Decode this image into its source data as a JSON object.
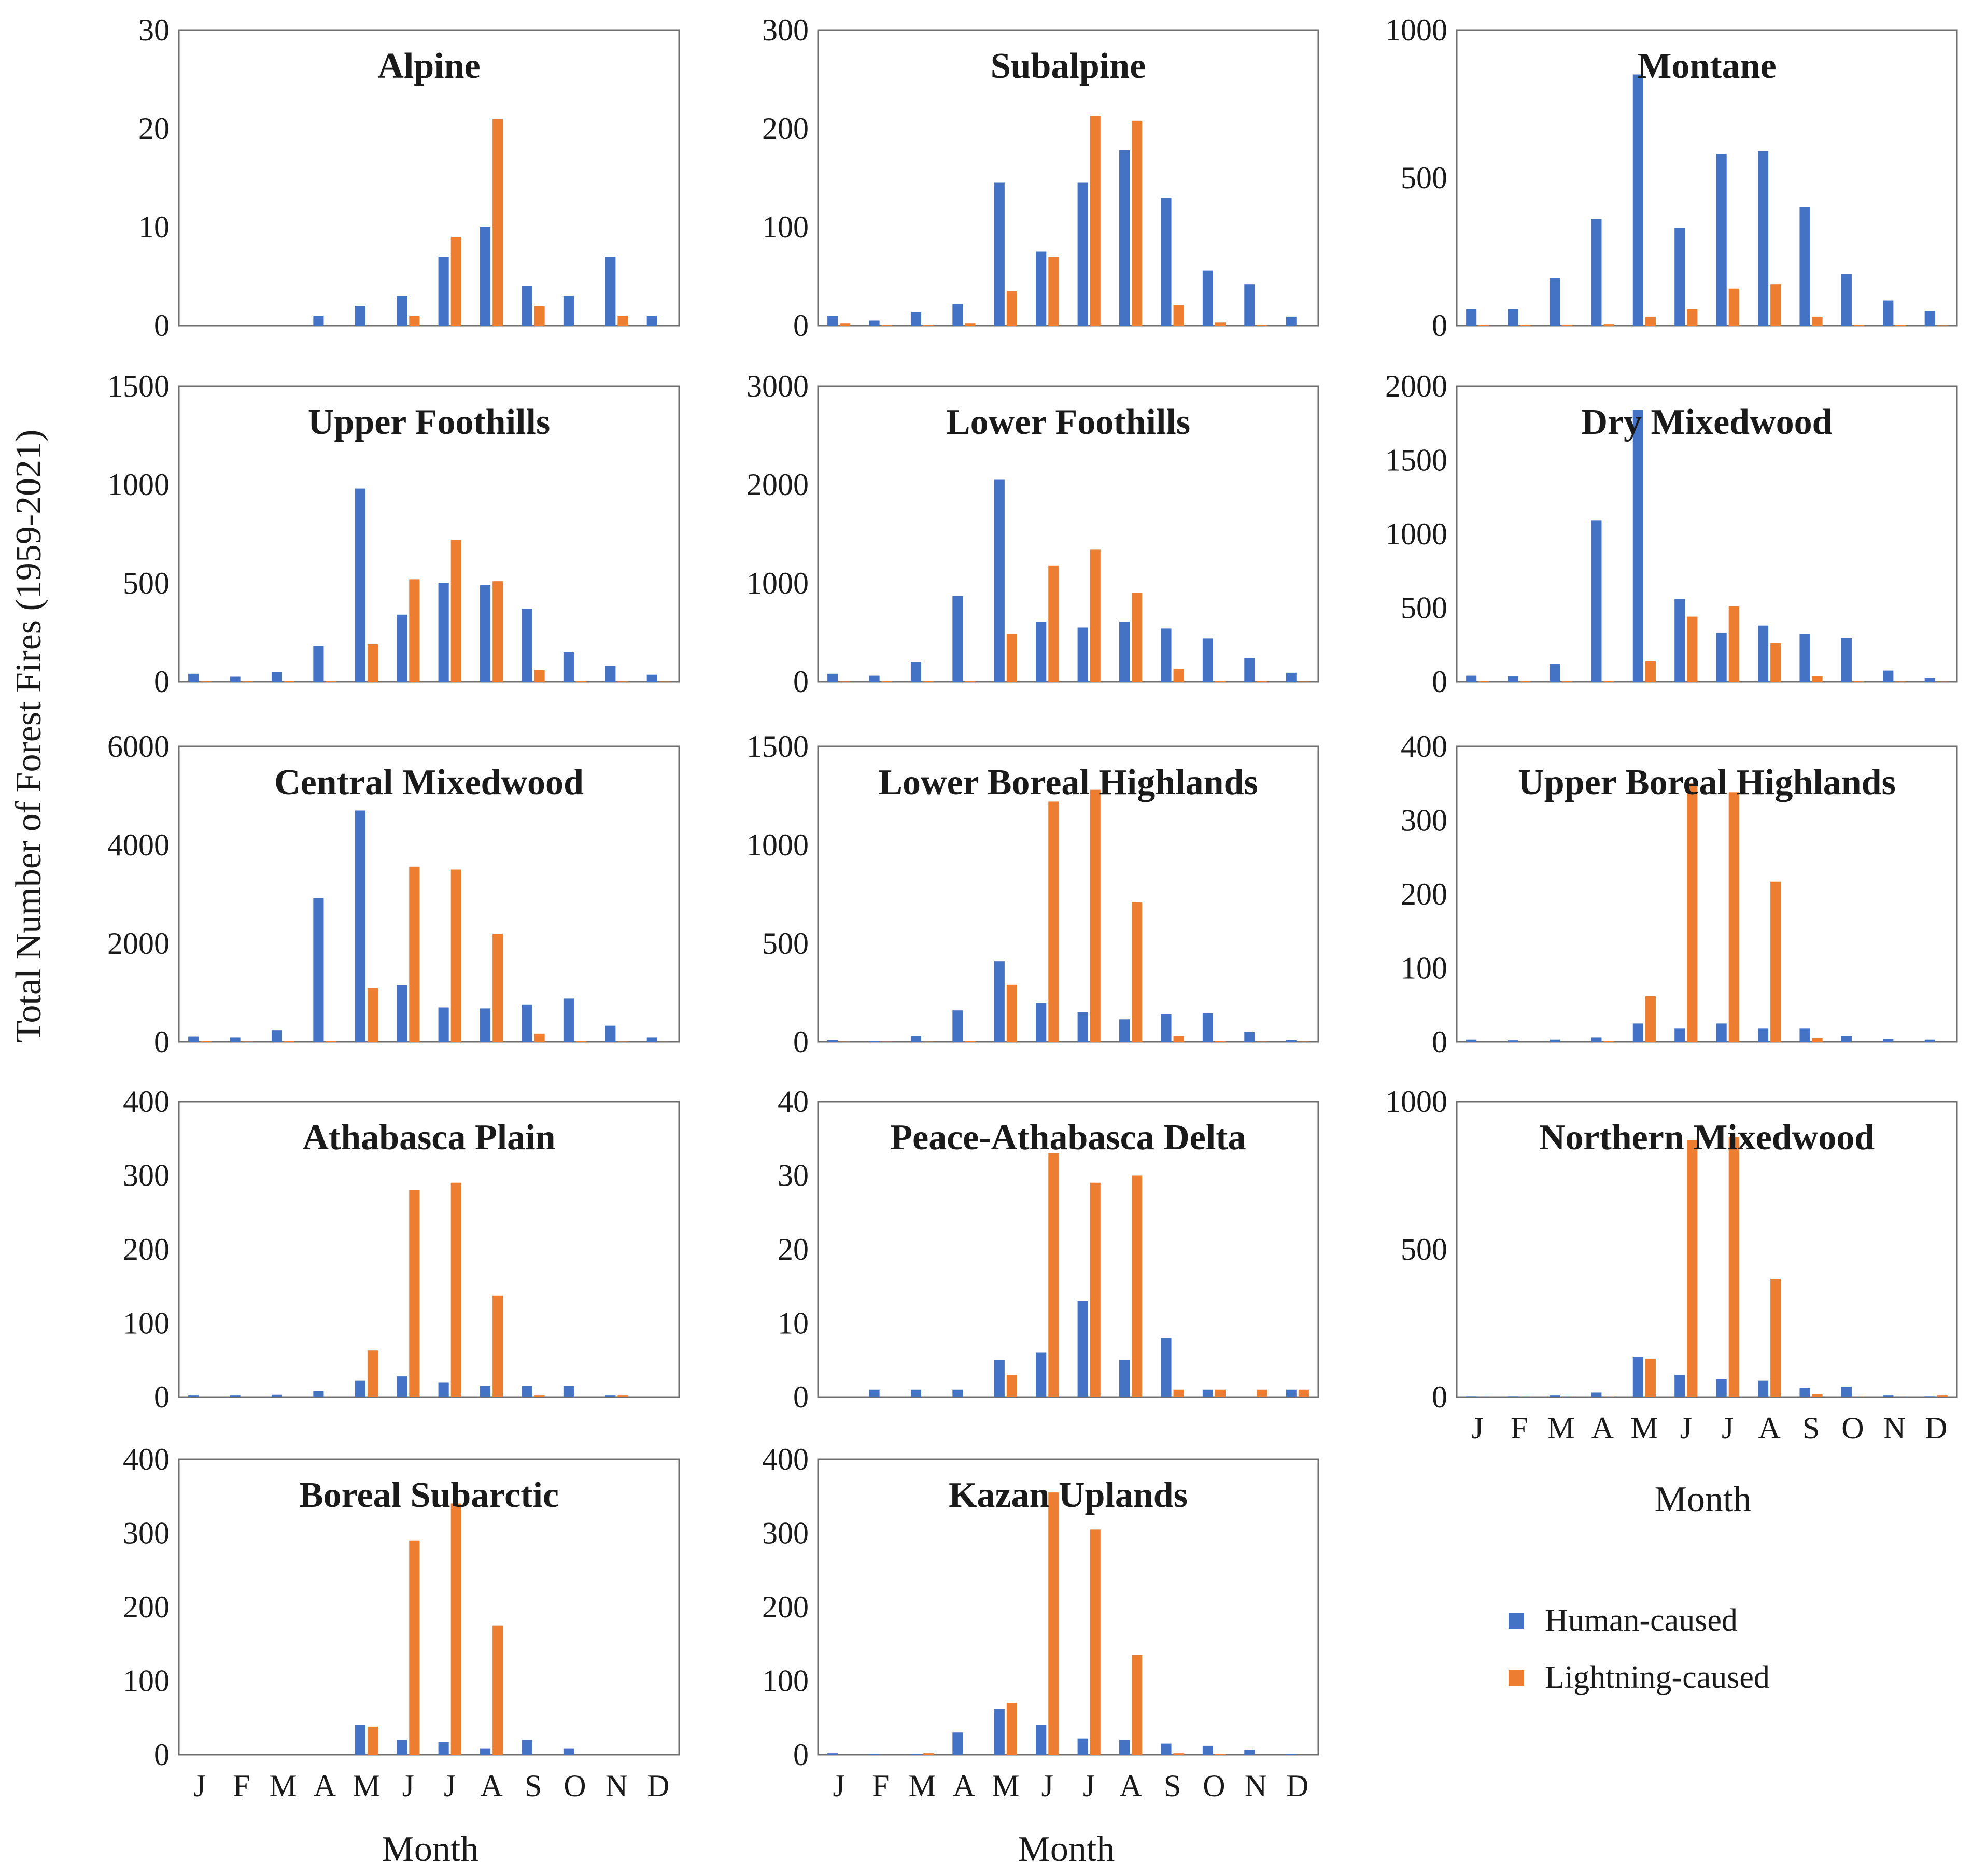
{
  "figure": {
    "ylabel": "Total Number of Forest Fires (1959-2021)",
    "xlabel": "Month",
    "months": [
      "J",
      "F",
      "M",
      "A",
      "M",
      "J",
      "J",
      "A",
      "S",
      "O",
      "N",
      "D"
    ],
    "colors": {
      "human": "#4472C4",
      "lightning": "#ED7D31"
    }
  },
  "legend": {
    "human_label": "Human-caused",
    "lightning_label": "Lightning-caused"
  },
  "chart_data": [
    {
      "type": "bar",
      "title": "Alpine",
      "categories": [
        "J",
        "F",
        "M",
        "A",
        "M",
        "J",
        "J",
        "A",
        "S",
        "O",
        "N",
        "D"
      ],
      "ylim": [
        0,
        30
      ],
      "yticks": [
        0,
        10,
        20,
        30
      ],
      "series": [
        {
          "name": "Human-caused",
          "values": [
            0,
            0,
            0,
            1,
            2,
            3,
            7,
            10,
            4,
            3,
            7,
            1
          ]
        },
        {
          "name": "Lightning-caused",
          "values": [
            0,
            0,
            0,
            0,
            0,
            1,
            9,
            21,
            2,
            0,
            1,
            0
          ]
        }
      ]
    },
    {
      "type": "bar",
      "title": "Subalpine",
      "categories": [
        "J",
        "F",
        "M",
        "A",
        "M",
        "J",
        "J",
        "A",
        "S",
        "O",
        "N",
        "D"
      ],
      "ylim": [
        0,
        300
      ],
      "yticks": [
        0,
        100,
        200,
        300
      ],
      "series": [
        {
          "name": "Human-caused",
          "values": [
            10,
            5,
            14,
            22,
            145,
            75,
            145,
            178,
            130,
            56,
            42,
            9
          ]
        },
        {
          "name": "Lightning-caused",
          "values": [
            2,
            1,
            1,
            2,
            35,
            70,
            213,
            208,
            21,
            3,
            1,
            0
          ]
        }
      ]
    },
    {
      "type": "bar",
      "title": "Montane",
      "categories": [
        "J",
        "F",
        "M",
        "A",
        "M",
        "J",
        "J",
        "A",
        "S",
        "O",
        "N",
        "D"
      ],
      "ylim": [
        0,
        1000
      ],
      "yticks": [
        0,
        500,
        1000
      ],
      "series": [
        {
          "name": "Human-caused",
          "values": [
            55,
            55,
            160,
            360,
            850,
            330,
            580,
            590,
            400,
            175,
            85,
            50
          ]
        },
        {
          "name": "Lightning-caused",
          "values": [
            3,
            3,
            3,
            5,
            30,
            55,
            125,
            140,
            30,
            3,
            2,
            1
          ]
        }
      ]
    },
    {
      "type": "bar",
      "title": "Upper Foothills",
      "categories": [
        "J",
        "F",
        "M",
        "A",
        "M",
        "J",
        "J",
        "A",
        "S",
        "O",
        "N",
        "D"
      ],
      "ylim": [
        0,
        1500
      ],
      "yticks": [
        0,
        500,
        1000,
        1500
      ],
      "series": [
        {
          "name": "Human-caused",
          "values": [
            40,
            25,
            50,
            180,
            980,
            340,
            500,
            490,
            370,
            150,
            80,
            35
          ]
        },
        {
          "name": "Lightning-caused",
          "values": [
            2,
            2,
            3,
            5,
            190,
            520,
            720,
            510,
            60,
            5,
            2,
            1
          ]
        }
      ]
    },
    {
      "type": "bar",
      "title": "Lower Foothills",
      "categories": [
        "J",
        "F",
        "M",
        "A",
        "M",
        "J",
        "J",
        "A",
        "S",
        "O",
        "N",
        "D"
      ],
      "ylim": [
        0,
        3000
      ],
      "yticks": [
        0,
        1000,
        2000,
        3000
      ],
      "series": [
        {
          "name": "Human-caused",
          "values": [
            80,
            60,
            200,
            870,
            2050,
            610,
            550,
            610,
            540,
            440,
            240,
            90
          ]
        },
        {
          "name": "Lightning-caused",
          "values": [
            3,
            5,
            5,
            10,
            480,
            1180,
            1340,
            900,
            130,
            10,
            5,
            2
          ]
        }
      ]
    },
    {
      "type": "bar",
      "title": "Dry Mixedwood",
      "categories": [
        "J",
        "F",
        "M",
        "A",
        "M",
        "J",
        "J",
        "A",
        "S",
        "O",
        "N",
        "D"
      ],
      "ylim": [
        0,
        2000
      ],
      "yticks": [
        0,
        500,
        1000,
        1500,
        2000
      ],
      "series": [
        {
          "name": "Human-caused",
          "values": [
            40,
            35,
            120,
            1090,
            1840,
            560,
            330,
            380,
            320,
            295,
            75,
            25
          ]
        },
        {
          "name": "Lightning-caused",
          "values": [
            3,
            3,
            3,
            5,
            140,
            440,
            510,
            260,
            35,
            3,
            2,
            1
          ]
        }
      ]
    },
    {
      "type": "bar",
      "title": "Central Mixedwood",
      "categories": [
        "J",
        "F",
        "M",
        "A",
        "M",
        "J",
        "J",
        "A",
        "S",
        "O",
        "N",
        "D"
      ],
      "ylim": [
        0,
        6000
      ],
      "yticks": [
        0,
        2000,
        4000,
        6000
      ],
      "series": [
        {
          "name": "Human-caused",
          "values": [
            110,
            90,
            240,
            2920,
            4700,
            1150,
            700,
            680,
            760,
            880,
            330,
            90
          ]
        },
        {
          "name": "Lightning-caused",
          "values": [
            10,
            5,
            15,
            20,
            1100,
            3560,
            3500,
            2200,
            170,
            15,
            5,
            2
          ]
        }
      ]
    },
    {
      "type": "bar",
      "title": "Lower Boreal Highlands",
      "categories": [
        "J",
        "F",
        "M",
        "A",
        "M",
        "J",
        "J",
        "A",
        "S",
        "O",
        "N",
        "D"
      ],
      "ylim": [
        0,
        1500
      ],
      "yticks": [
        0,
        500,
        1000,
        1500
      ],
      "series": [
        {
          "name": "Human-caused",
          "values": [
            8,
            5,
            30,
            160,
            410,
            200,
            150,
            115,
            140,
            145,
            50,
            8
          ]
        },
        {
          "name": "Lightning-caused",
          "values": [
            1,
            1,
            1,
            5,
            290,
            1220,
            1280,
            710,
            30,
            3,
            1,
            1
          ]
        }
      ]
    },
    {
      "type": "bar",
      "title": "Upper Boreal Highlands",
      "categories": [
        "J",
        "F",
        "M",
        "A",
        "M",
        "J",
        "J",
        "A",
        "S",
        "O",
        "N",
        "D"
      ],
      "ylim": [
        0,
        400
      ],
      "yticks": [
        0,
        100,
        200,
        300,
        400
      ],
      "series": [
        {
          "name": "Human-caused",
          "values": [
            3,
            2,
            3,
            6,
            25,
            18,
            25,
            18,
            18,
            8,
            4,
            3
          ]
        },
        {
          "name": "Lightning-caused",
          "values": [
            0,
            0,
            0,
            1,
            62,
            350,
            338,
            217,
            5,
            0,
            0,
            0
          ]
        }
      ]
    },
    {
      "type": "bar",
      "title": "Athabasca Plain",
      "categories": [
        "J",
        "F",
        "M",
        "A",
        "M",
        "J",
        "J",
        "A",
        "S",
        "O",
        "N",
        "D"
      ],
      "ylim": [
        0,
        400
      ],
      "yticks": [
        0,
        100,
        200,
        300,
        400
      ],
      "series": [
        {
          "name": "Human-caused",
          "values": [
            2,
            2,
            3,
            8,
            22,
            28,
            20,
            15,
            15,
            15,
            2,
            0
          ]
        },
        {
          "name": "Lightning-caused",
          "values": [
            0,
            0,
            0,
            0,
            63,
            280,
            290,
            137,
            2,
            0,
            2,
            0
          ]
        }
      ]
    },
    {
      "type": "bar",
      "title": "Peace-Athabasca Delta",
      "categories": [
        "J",
        "F",
        "M",
        "A",
        "M",
        "J",
        "J",
        "A",
        "S",
        "O",
        "N",
        "D"
      ],
      "ylim": [
        0,
        40
      ],
      "yticks": [
        0,
        10,
        20,
        30,
        40
      ],
      "series": [
        {
          "name": "Human-caused",
          "values": [
            0,
            1,
            1,
            1,
            5,
            6,
            13,
            5,
            8,
            1,
            0,
            1
          ]
        },
        {
          "name": "Lightning-caused",
          "values": [
            0,
            0,
            0,
            0,
            3,
            33,
            29,
            30,
            1,
            1,
            1,
            1
          ]
        }
      ]
    },
    {
      "type": "bar",
      "title": "Northern Mixedwood",
      "categories": [
        "J",
        "F",
        "M",
        "A",
        "M",
        "J",
        "J",
        "A",
        "S",
        "O",
        "N",
        "D"
      ],
      "ylim": [
        0,
        1000
      ],
      "yticks": [
        0,
        500,
        1000
      ],
      "series": [
        {
          "name": "Human-caused",
          "values": [
            3,
            3,
            5,
            15,
            135,
            75,
            60,
            55,
            30,
            35,
            5,
            3
          ]
        },
        {
          "name": "Lightning-caused",
          "values": [
            1,
            1,
            1,
            2,
            130,
            870,
            880,
            400,
            10,
            2,
            1,
            5
          ]
        }
      ]
    },
    {
      "type": "bar",
      "title": "Boreal Subarctic",
      "categories": [
        "J",
        "F",
        "M",
        "A",
        "M",
        "J",
        "J",
        "A",
        "S",
        "O",
        "N",
        "D"
      ],
      "ylim": [
        0,
        400
      ],
      "yticks": [
        0,
        100,
        200,
        300,
        400
      ],
      "series": [
        {
          "name": "Human-caused",
          "values": [
            0,
            0,
            0,
            0,
            40,
            20,
            17,
            8,
            20,
            8,
            0,
            0
          ]
        },
        {
          "name": "Lightning-caused",
          "values": [
            0,
            0,
            0,
            0,
            38,
            290,
            340,
            175,
            0,
            0,
            0,
            0
          ]
        }
      ]
    },
    {
      "type": "bar",
      "title": "Kazan Uplands",
      "categories": [
        "J",
        "F",
        "M",
        "A",
        "M",
        "J",
        "J",
        "A",
        "S",
        "O",
        "N",
        "D"
      ],
      "ylim": [
        0,
        400
      ],
      "yticks": [
        0,
        100,
        200,
        300,
        400
      ],
      "series": [
        {
          "name": "Human-caused",
          "values": [
            2,
            1,
            1,
            30,
            62,
            40,
            22,
            20,
            15,
            12,
            7,
            1
          ]
        },
        {
          "name": "Lightning-caused",
          "values": [
            0,
            0,
            2,
            0,
            70,
            355,
            305,
            135,
            2,
            1,
            0,
            0
          ]
        }
      ]
    }
  ]
}
